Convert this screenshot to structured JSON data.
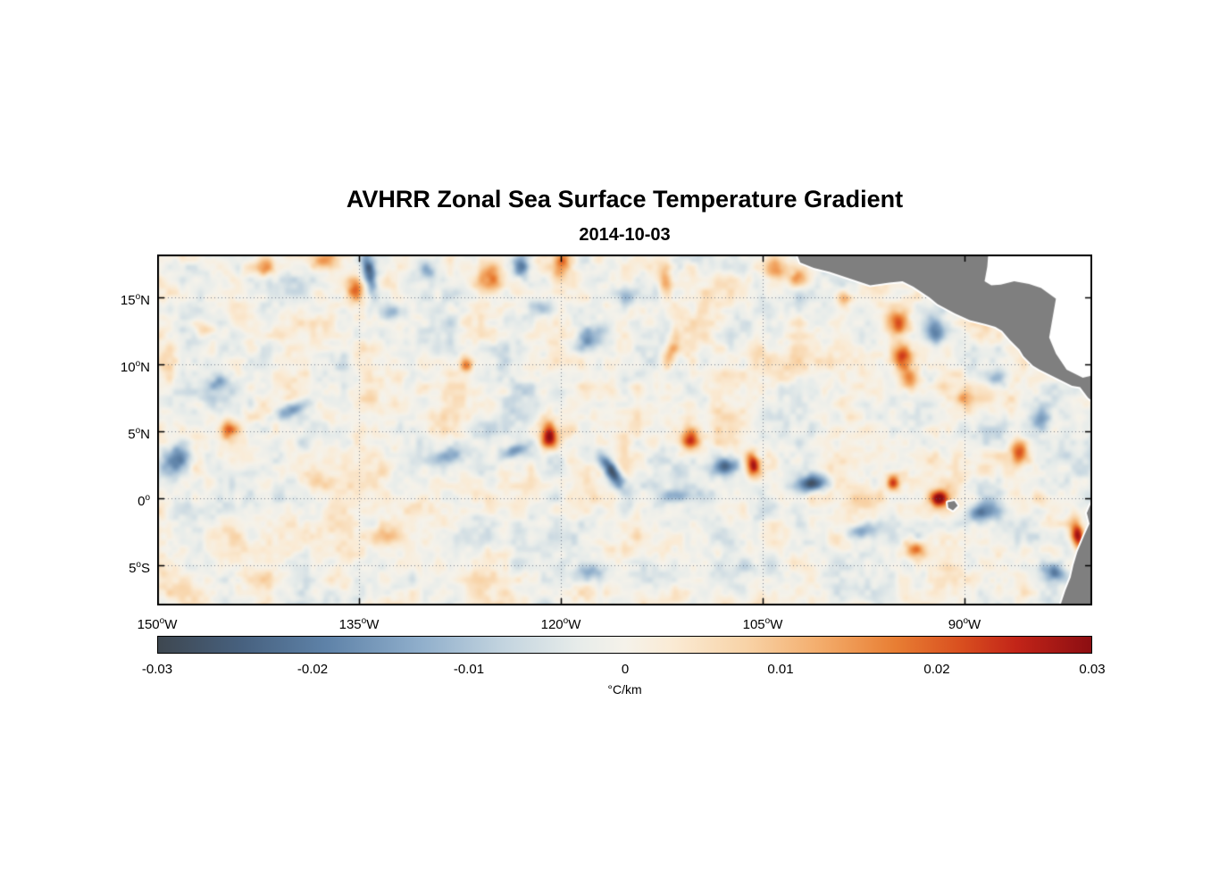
{
  "title": "AVHRR Zonal Sea Surface Temperature Gradient",
  "subtitle": "2014-10-03",
  "axes": {
    "y_ticks": [
      {
        "num": "15",
        "deg": "o",
        "dir": "N"
      },
      {
        "num": "10",
        "deg": "o",
        "dir": "N"
      },
      {
        "num": "5",
        "deg": "o",
        "dir": "N"
      },
      {
        "num": "0",
        "deg": "o",
        "dir": ""
      },
      {
        "num": "5",
        "deg": "o",
        "dir": "S"
      }
    ],
    "x_ticks": [
      {
        "num": "150",
        "deg": "o",
        "dir": "W"
      },
      {
        "num": "135",
        "deg": "o",
        "dir": "W"
      },
      {
        "num": "120",
        "deg": "o",
        "dir": "W"
      },
      {
        "num": "105",
        "deg": "o",
        "dir": "W"
      },
      {
        "num": "90",
        "deg": "o",
        "dir": "W"
      }
    ]
  },
  "colorbar": {
    "tick_labels": [
      "-0.03",
      "-0.02",
      "-0.01",
      "0",
      "0.01",
      "0.02",
      "0.03"
    ],
    "label": "°C/km"
  },
  "chart_data": {
    "type": "heatmap",
    "title": "AVHRR Zonal Sea Surface Temperature Gradient",
    "date": "2014-10-03",
    "x_axis": {
      "range": [
        -150,
        -80.5
      ],
      "tick_lons": [
        -150,
        -135,
        -120,
        -105,
        -90
      ],
      "tick_labels": [
        "150°W",
        "135°W",
        "120°W",
        "105°W",
        "90°W"
      ]
    },
    "y_axis": {
      "range": [
        -8.0,
        18.2
      ],
      "tick_lats": [
        15,
        10,
        5,
        0,
        -5
      ],
      "tick_labels": [
        "15°N",
        "10°N",
        "5°N",
        "0°",
        "5°S"
      ]
    },
    "colorbar": {
      "range": [
        -0.03,
        0.03
      ],
      "ticks": [
        -0.03,
        -0.02,
        -0.01,
        0,
        0.01,
        0.02,
        0.03
      ],
      "units": "°C/km"
    },
    "grid": true,
    "land_color": "#7f7f7f",
    "colormap": [
      {
        "p": 0.0,
        "c": "#3e4750"
      },
      {
        "p": 0.09,
        "c": "#47617f"
      },
      {
        "p": 0.18,
        "c": "#5e82a8"
      },
      {
        "p": 0.28,
        "c": "#8faecb"
      },
      {
        "p": 0.37,
        "c": "#c3d4df"
      },
      {
        "p": 0.45,
        "c": "#e7eceA"
      },
      {
        "p": 0.5,
        "c": "#f5f2ea"
      },
      {
        "p": 0.55,
        "c": "#faebd5"
      },
      {
        "p": 0.63,
        "c": "#f8d3a7"
      },
      {
        "p": 0.71,
        "c": "#f3ac6b"
      },
      {
        "p": 0.79,
        "c": "#e87e33"
      },
      {
        "p": 0.86,
        "c": "#d94f1f"
      },
      {
        "p": 0.92,
        "c": "#c22418"
      },
      {
        "p": 1.0,
        "c": "#8c0e12"
      }
    ],
    "field": {
      "seed": 11,
      "noise_amplitude": 0.0048,
      "anomalies": [
        [
          -134.2,
          16.7,
          -0.028,
          0.5,
          1.6,
          10
        ],
        [
          -135.3,
          15.6,
          0.016,
          0.7,
          0.9,
          0
        ],
        [
          -137.6,
          17.7,
          0.016,
          1.0,
          0.7,
          0
        ],
        [
          -125.1,
          16.4,
          0.018,
          0.9,
          1.1,
          20
        ],
        [
          -123.0,
          17.4,
          -0.02,
          0.6,
          0.9,
          0
        ],
        [
          -119.9,
          17.6,
          0.018,
          0.6,
          1.2,
          -15
        ],
        [
          -117.7,
          12.0,
          -0.014,
          1.3,
          0.8,
          30
        ],
        [
          -112.2,
          16.2,
          0.014,
          0.5,
          1.3,
          10
        ],
        [
          -111.8,
          10.9,
          0.013,
          0.5,
          1.5,
          -20
        ],
        [
          -115.2,
          15.1,
          -0.013,
          0.8,
          0.8,
          0
        ],
        [
          -104.1,
          17.2,
          0.02,
          0.8,
          0.9,
          0
        ],
        [
          -102.4,
          16.4,
          0.018,
          0.7,
          0.7,
          0
        ],
        [
          -95.0,
          13.1,
          0.022,
          0.8,
          1.0,
          20
        ],
        [
          -94.6,
          10.5,
          0.02,
          0.7,
          0.9,
          0
        ],
        [
          -94.1,
          8.9,
          0.018,
          0.7,
          0.8,
          0
        ],
        [
          -92.1,
          12.4,
          -0.016,
          0.7,
          1.0,
          0
        ],
        [
          -127.0,
          10.0,
          0.02,
          0.5,
          0.6,
          0
        ],
        [
          -139.8,
          6.7,
          -0.018,
          1.8,
          0.5,
          25
        ],
        [
          -144.7,
          5.2,
          0.018,
          0.6,
          0.8,
          0
        ],
        [
          -148.7,
          2.9,
          -0.022,
          1.0,
          1.2,
          -30
        ],
        [
          -128.5,
          3.1,
          -0.017,
          1.4,
          0.6,
          15
        ],
        [
          -120.8,
          4.6,
          0.028,
          0.6,
          0.9,
          0
        ],
        [
          -123.5,
          3.5,
          -0.015,
          1.2,
          0.5,
          20
        ],
        [
          -116.2,
          2.0,
          -0.026,
          0.5,
          1.5,
          35
        ],
        [
          -110.4,
          4.4,
          0.022,
          0.7,
          0.9,
          0
        ],
        [
          -107.8,
          2.4,
          -0.02,
          1.0,
          0.6,
          20
        ],
        [
          -105.7,
          2.5,
          0.028,
          0.5,
          1.0,
          10
        ],
        [
          -101.4,
          1.1,
          -0.024,
          1.3,
          0.6,
          10
        ],
        [
          -95.3,
          1.2,
          0.024,
          0.5,
          0.6,
          0
        ],
        [
          -91.9,
          0.0,
          0.03,
          0.7,
          0.6,
          0
        ],
        [
          -88.7,
          -1.1,
          -0.018,
          1.2,
          0.7,
          15
        ],
        [
          -86.0,
          3.5,
          0.02,
          0.6,
          0.9,
          0
        ],
        [
          -81.6,
          -2.7,
          0.03,
          0.5,
          1.2,
          10
        ],
        [
          -83.4,
          -5.5,
          -0.022,
          1.0,
          0.8,
          -20
        ],
        [
          -93.7,
          -3.8,
          0.02,
          0.8,
          0.7,
          0
        ],
        [
          -97.8,
          -2.5,
          -0.015,
          1.2,
          0.6,
          10
        ],
        [
          -132.5,
          13.9,
          -0.012,
          0.9,
          0.6,
          0
        ],
        [
          -121.5,
          14.2,
          -0.013,
          1.0,
          0.7,
          0
        ],
        [
          -141.9,
          17.2,
          0.014,
          0.8,
          0.6,
          0
        ],
        [
          -145.4,
          8.7,
          -0.012,
          0.8,
          0.6,
          0
        ],
        [
          -138.3,
          1.2,
          0.01,
          1.0,
          0.6,
          0
        ],
        [
          -133.1,
          -2.8,
          0.009,
          1.2,
          0.7,
          0
        ],
        [
          -117.9,
          -5.5,
          -0.012,
          1.1,
          0.6,
          10
        ],
        [
          -84.3,
          5.9,
          -0.015,
          0.8,
          0.9,
          0
        ],
        [
          -111.2,
          0.2,
          -0.012,
          1.5,
          0.5,
          5
        ],
        [
          -98.9,
          14.8,
          0.014,
          0.6,
          0.8,
          0
        ],
        [
          -129.9,
          17.0,
          -0.012,
          0.7,
          0.7,
          0
        ],
        [
          -146.5,
          12.5,
          0.011,
          0.8,
          0.6,
          0
        ],
        [
          -90.0,
          7.5,
          0.013,
          0.6,
          0.7,
          0
        ],
        [
          -87.5,
          9.0,
          -0.013,
          0.8,
          0.6,
          0
        ]
      ]
    },
    "land": {
      "central_america": [
        [
          -102.6,
          18.6
        ],
        [
          -102.2,
          17.6
        ],
        [
          -101.2,
          17.2
        ],
        [
          -100.0,
          16.9
        ],
        [
          -98.5,
          16.4
        ],
        [
          -97.0,
          15.9
        ],
        [
          -95.6,
          16.1
        ],
        [
          -94.6,
          16.2
        ],
        [
          -93.8,
          15.8
        ],
        [
          -92.6,
          15.0
        ],
        [
          -92.0,
          14.5
        ],
        [
          -90.7,
          13.8
        ],
        [
          -89.6,
          13.3
        ],
        [
          -88.4,
          13.0
        ],
        [
          -87.7,
          12.8
        ],
        [
          -87.2,
          12.5
        ],
        [
          -86.6,
          11.8
        ],
        [
          -85.9,
          11.1
        ],
        [
          -85.6,
          10.6
        ],
        [
          -84.9,
          9.9
        ],
        [
          -84.4,
          9.6
        ],
        [
          -83.6,
          9.2
        ],
        [
          -82.8,
          8.8
        ],
        [
          -82.0,
          8.4
        ],
        [
          -81.4,
          8.3
        ],
        [
          -80.8,
          7.5
        ],
        [
          -80.3,
          7.1
        ],
        [
          -79.6,
          6.9
        ],
        [
          -79.6,
          18.6
        ]
      ],
      "caribbean_sea": [
        [
          -88.2,
          18.6
        ],
        [
          -79.6,
          18.6
        ],
        [
          -79.6,
          9.4
        ],
        [
          -81.2,
          9.0
        ],
        [
          -82.4,
          9.6
        ],
        [
          -83.2,
          10.8
        ],
        [
          -83.7,
          12.0
        ],
        [
          -83.2,
          14.9
        ],
        [
          -84.3,
          15.7
        ],
        [
          -85.2,
          16.0
        ],
        [
          -86.3,
          16.2
        ],
        [
          -87.3,
          15.95
        ],
        [
          -88.0,
          15.9
        ],
        [
          -88.5,
          16.2
        ],
        [
          -88.3,
          17.3
        ]
      ],
      "south_america": [
        [
          -80.2,
          0.3
        ],
        [
          -80.6,
          -0.4
        ],
        [
          -80.9,
          -1.1
        ],
        [
          -80.7,
          -1.9
        ],
        [
          -81.1,
          -2.8
        ],
        [
          -81.6,
          -4.0
        ],
        [
          -81.9,
          -5.0
        ],
        [
          -82.1,
          -5.9
        ],
        [
          -82.5,
          -6.9
        ],
        [
          -83.0,
          -8.4
        ],
        [
          -79.0,
          -8.4
        ],
        [
          -79.0,
          0.6
        ]
      ],
      "galapagos": [
        [
          -91.25,
          -0.3
        ],
        [
          -90.75,
          -0.2
        ],
        [
          -90.5,
          -0.55
        ],
        [
          -90.85,
          -0.9
        ],
        [
          -91.2,
          -0.7
        ]
      ]
    }
  }
}
